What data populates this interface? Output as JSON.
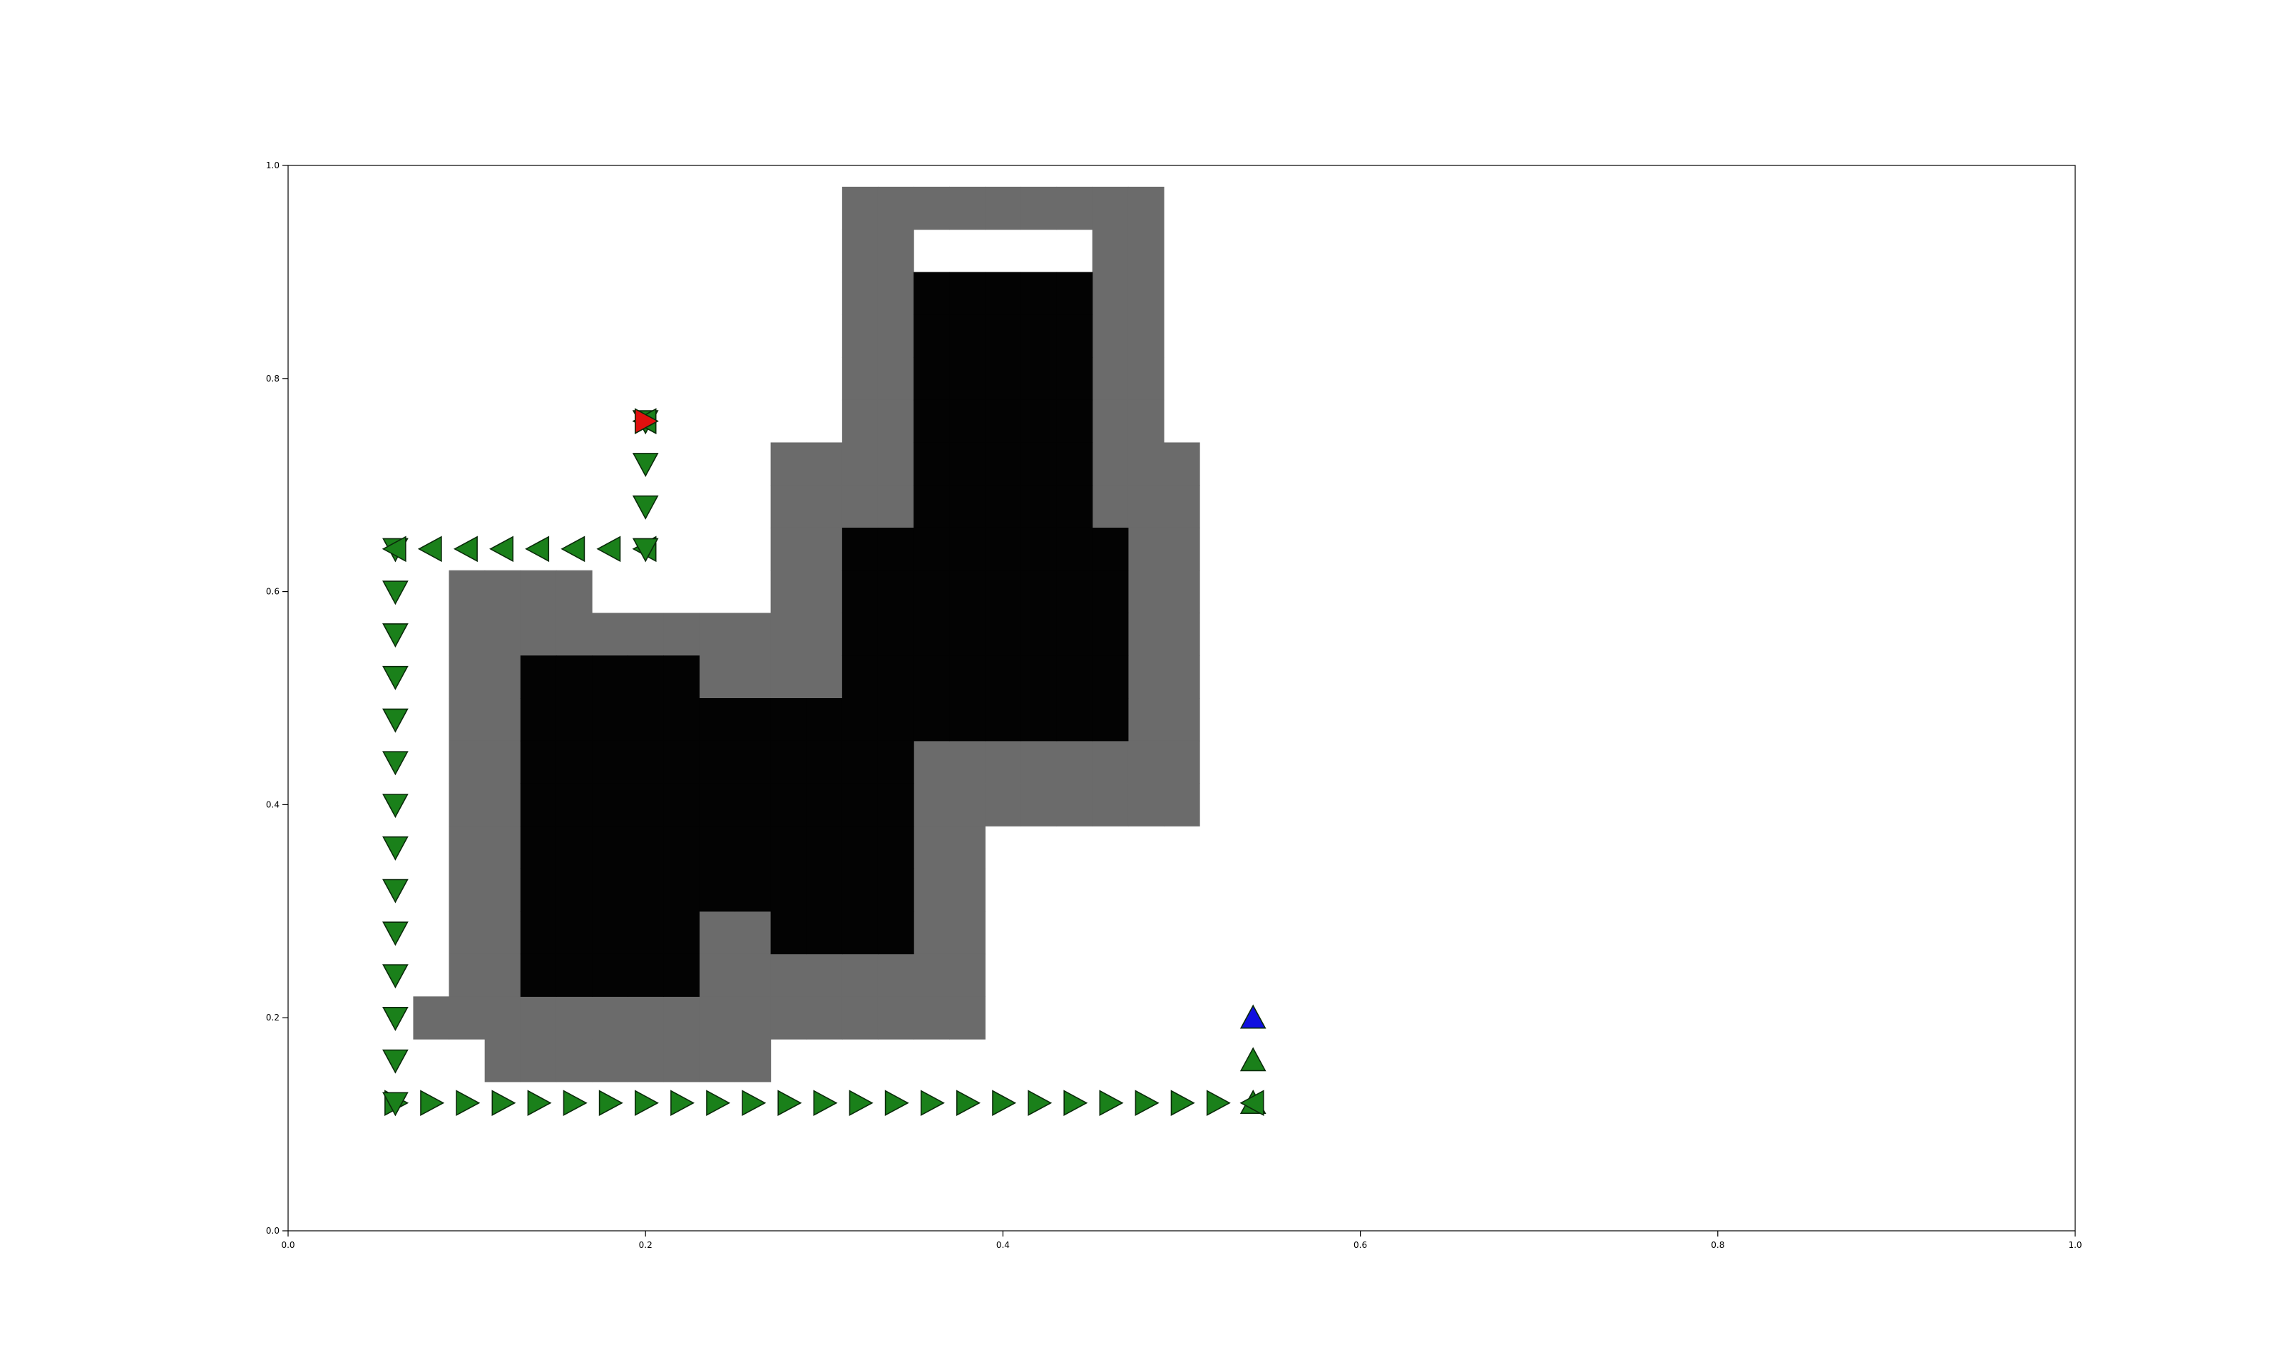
{
  "chart_data": {
    "type": "scatter",
    "title": "",
    "xlabel": "",
    "ylabel": "",
    "xlim": [
      0.0,
      1.0
    ],
    "ylim": [
      0.0,
      1.0
    ],
    "grid": false,
    "xticks": [
      "0.0",
      "0.2",
      "0.4",
      "0.6",
      "0.8",
      "1.0"
    ],
    "yticks": [
      "0.0",
      "0.2",
      "0.4",
      "0.6",
      "0.8",
      "1.0"
    ],
    "colors": {
      "inflated_obstacle": "#6b6b6b",
      "obstacle": "#030303",
      "path_marker": "#1a801a",
      "goal_marker": "#e0100e",
      "start_marker": "#1010e0",
      "marker_edge": "#0a2a0a"
    },
    "inflated_obstacle_cells": [
      [
        0.32,
        0.96
      ],
      [
        0.34,
        0.96
      ],
      [
        0.36,
        0.96
      ],
      [
        0.38,
        0.96
      ],
      [
        0.4,
        0.96
      ],
      [
        0.42,
        0.96
      ],
      [
        0.44,
        0.96
      ],
      [
        0.46,
        0.96
      ],
      [
        0.48,
        0.96
      ],
      [
        0.32,
        0.92
      ],
      [
        0.34,
        0.92
      ],
      [
        0.46,
        0.92
      ],
      [
        0.48,
        0.92
      ],
      [
        0.32,
        0.88
      ],
      [
        0.34,
        0.88
      ],
      [
        0.46,
        0.88
      ],
      [
        0.48,
        0.88
      ],
      [
        0.32,
        0.84
      ],
      [
        0.34,
        0.84
      ],
      [
        0.46,
        0.84
      ],
      [
        0.48,
        0.84
      ],
      [
        0.32,
        0.8
      ],
      [
        0.34,
        0.8
      ],
      [
        0.46,
        0.8
      ],
      [
        0.48,
        0.8
      ],
      [
        0.32,
        0.76
      ],
      [
        0.34,
        0.76
      ],
      [
        0.46,
        0.76
      ],
      [
        0.48,
        0.76
      ],
      [
        0.28,
        0.72
      ],
      [
        0.3,
        0.72
      ],
      [
        0.32,
        0.72
      ],
      [
        0.34,
        0.72
      ],
      [
        0.46,
        0.72
      ],
      [
        0.48,
        0.72
      ],
      [
        0.5,
        0.72
      ],
      [
        0.28,
        0.68
      ],
      [
        0.3,
        0.68
      ],
      [
        0.32,
        0.68
      ],
      [
        0.34,
        0.68
      ],
      [
        0.46,
        0.68
      ],
      [
        0.48,
        0.68
      ],
      [
        0.5,
        0.68
      ],
      [
        0.28,
        0.64
      ],
      [
        0.3,
        0.64
      ],
      [
        0.48,
        0.64
      ],
      [
        0.5,
        0.64
      ],
      [
        0.1,
        0.6
      ],
      [
        0.12,
        0.6
      ],
      [
        0.14,
        0.6
      ],
      [
        0.16,
        0.6
      ],
      [
        0.28,
        0.6
      ],
      [
        0.3,
        0.6
      ],
      [
        0.48,
        0.6
      ],
      [
        0.5,
        0.6
      ],
      [
        0.1,
        0.56
      ],
      [
        0.12,
        0.56
      ],
      [
        0.14,
        0.56
      ],
      [
        0.16,
        0.56
      ],
      [
        0.18,
        0.56
      ],
      [
        0.2,
        0.56
      ],
      [
        0.22,
        0.56
      ],
      [
        0.24,
        0.56
      ],
      [
        0.26,
        0.56
      ],
      [
        0.28,
        0.56
      ],
      [
        0.3,
        0.56
      ],
      [
        0.48,
        0.56
      ],
      [
        0.5,
        0.56
      ],
      [
        0.1,
        0.52
      ],
      [
        0.12,
        0.52
      ],
      [
        0.24,
        0.52
      ],
      [
        0.26,
        0.52
      ],
      [
        0.28,
        0.52
      ],
      [
        0.3,
        0.52
      ],
      [
        0.48,
        0.52
      ],
      [
        0.5,
        0.52
      ],
      [
        0.1,
        0.48
      ],
      [
        0.12,
        0.48
      ],
      [
        0.48,
        0.48
      ],
      [
        0.5,
        0.48
      ],
      [
        0.1,
        0.44
      ],
      [
        0.12,
        0.44
      ],
      [
        0.36,
        0.44
      ],
      [
        0.38,
        0.44
      ],
      [
        0.4,
        0.44
      ],
      [
        0.42,
        0.44
      ],
      [
        0.44,
        0.44
      ],
      [
        0.46,
        0.44
      ],
      [
        0.48,
        0.44
      ],
      [
        0.5,
        0.44
      ],
      [
        0.1,
        0.4
      ],
      [
        0.12,
        0.4
      ],
      [
        0.36,
        0.4
      ],
      [
        0.38,
        0.4
      ],
      [
        0.4,
        0.4
      ],
      [
        0.42,
        0.4
      ],
      [
        0.44,
        0.4
      ],
      [
        0.46,
        0.4
      ],
      [
        0.48,
        0.4
      ],
      [
        0.5,
        0.4
      ],
      [
        0.1,
        0.36
      ],
      [
        0.12,
        0.36
      ],
      [
        0.36,
        0.36
      ],
      [
        0.38,
        0.36
      ],
      [
        0.1,
        0.32
      ],
      [
        0.12,
        0.32
      ],
      [
        0.36,
        0.32
      ],
      [
        0.38,
        0.32
      ],
      [
        0.1,
        0.28
      ],
      [
        0.12,
        0.28
      ],
      [
        0.24,
        0.28
      ],
      [
        0.26,
        0.28
      ],
      [
        0.36,
        0.28
      ],
      [
        0.38,
        0.28
      ],
      [
        0.1,
        0.24
      ],
      [
        0.12,
        0.24
      ],
      [
        0.24,
        0.24
      ],
      [
        0.26,
        0.24
      ],
      [
        0.28,
        0.24
      ],
      [
        0.3,
        0.24
      ],
      [
        0.32,
        0.24
      ],
      [
        0.34,
        0.24
      ],
      [
        0.36,
        0.24
      ],
      [
        0.38,
        0.24
      ],
      [
        0.08,
        0.2
      ],
      [
        0.1,
        0.2
      ],
      [
        0.12,
        0.2
      ],
      [
        0.14,
        0.2
      ],
      [
        0.16,
        0.2
      ],
      [
        0.18,
        0.2
      ],
      [
        0.2,
        0.2
      ],
      [
        0.22,
        0.2
      ],
      [
        0.24,
        0.2
      ],
      [
        0.26,
        0.2
      ],
      [
        0.28,
        0.2
      ],
      [
        0.3,
        0.2
      ],
      [
        0.32,
        0.2
      ],
      [
        0.34,
        0.2
      ],
      [
        0.36,
        0.2
      ],
      [
        0.38,
        0.2
      ],
      [
        0.12,
        0.16
      ],
      [
        0.14,
        0.16
      ],
      [
        0.16,
        0.16
      ],
      [
        0.18,
        0.16
      ],
      [
        0.2,
        0.16
      ],
      [
        0.22,
        0.16
      ],
      [
        0.24,
        0.16
      ],
      [
        0.26,
        0.16
      ]
    ],
    "obstacle_cells": [
      [
        0.36,
        0.88
      ],
      [
        0.38,
        0.88
      ],
      [
        0.4,
        0.88
      ],
      [
        0.42,
        0.88
      ],
      [
        0.44,
        0.88
      ],
      [
        0.36,
        0.84
      ],
      [
        0.38,
        0.84
      ],
      [
        0.4,
        0.84
      ],
      [
        0.42,
        0.84
      ],
      [
        0.44,
        0.84
      ],
      [
        0.36,
        0.8
      ],
      [
        0.38,
        0.8
      ],
      [
        0.4,
        0.8
      ],
      [
        0.42,
        0.8
      ],
      [
        0.44,
        0.8
      ],
      [
        0.36,
        0.76
      ],
      [
        0.38,
        0.76
      ],
      [
        0.4,
        0.76
      ],
      [
        0.42,
        0.76
      ],
      [
        0.44,
        0.76
      ],
      [
        0.36,
        0.72
      ],
      [
        0.38,
        0.72
      ],
      [
        0.4,
        0.72
      ],
      [
        0.42,
        0.72
      ],
      [
        0.44,
        0.72
      ],
      [
        0.36,
        0.68
      ],
      [
        0.38,
        0.68
      ],
      [
        0.4,
        0.68
      ],
      [
        0.42,
        0.68
      ],
      [
        0.44,
        0.68
      ],
      [
        0.32,
        0.64
      ],
      [
        0.34,
        0.64
      ],
      [
        0.36,
        0.64
      ],
      [
        0.38,
        0.64
      ],
      [
        0.4,
        0.64
      ],
      [
        0.42,
        0.64
      ],
      [
        0.44,
        0.64
      ],
      [
        0.46,
        0.64
      ],
      [
        0.32,
        0.6
      ],
      [
        0.34,
        0.6
      ],
      [
        0.36,
        0.6
      ],
      [
        0.38,
        0.6
      ],
      [
        0.4,
        0.6
      ],
      [
        0.42,
        0.6
      ],
      [
        0.44,
        0.6
      ],
      [
        0.46,
        0.6
      ],
      [
        0.32,
        0.56
      ],
      [
        0.34,
        0.56
      ],
      [
        0.36,
        0.56
      ],
      [
        0.38,
        0.56
      ],
      [
        0.4,
        0.56
      ],
      [
        0.42,
        0.56
      ],
      [
        0.44,
        0.56
      ],
      [
        0.46,
        0.56
      ],
      [
        0.14,
        0.52
      ],
      [
        0.16,
        0.52
      ],
      [
        0.18,
        0.52
      ],
      [
        0.2,
        0.52
      ],
      [
        0.22,
        0.52
      ],
      [
        0.32,
        0.52
      ],
      [
        0.34,
        0.52
      ],
      [
        0.36,
        0.52
      ],
      [
        0.38,
        0.52
      ],
      [
        0.4,
        0.52
      ],
      [
        0.42,
        0.52
      ],
      [
        0.44,
        0.52
      ],
      [
        0.46,
        0.52
      ],
      [
        0.14,
        0.48
      ],
      [
        0.16,
        0.48
      ],
      [
        0.18,
        0.48
      ],
      [
        0.2,
        0.48
      ],
      [
        0.22,
        0.48
      ],
      [
        0.24,
        0.48
      ],
      [
        0.26,
        0.48
      ],
      [
        0.28,
        0.48
      ],
      [
        0.3,
        0.48
      ],
      [
        0.32,
        0.48
      ],
      [
        0.34,
        0.48
      ],
      [
        0.36,
        0.48
      ],
      [
        0.38,
        0.48
      ],
      [
        0.4,
        0.48
      ],
      [
        0.42,
        0.48
      ],
      [
        0.44,
        0.48
      ],
      [
        0.46,
        0.48
      ],
      [
        0.14,
        0.44
      ],
      [
        0.16,
        0.44
      ],
      [
        0.18,
        0.44
      ],
      [
        0.2,
        0.44
      ],
      [
        0.22,
        0.44
      ],
      [
        0.24,
        0.44
      ],
      [
        0.26,
        0.44
      ],
      [
        0.28,
        0.44
      ],
      [
        0.3,
        0.44
      ],
      [
        0.32,
        0.44
      ],
      [
        0.34,
        0.44
      ],
      [
        0.14,
        0.4
      ],
      [
        0.16,
        0.4
      ],
      [
        0.18,
        0.4
      ],
      [
        0.2,
        0.4
      ],
      [
        0.22,
        0.4
      ],
      [
        0.24,
        0.4
      ],
      [
        0.26,
        0.4
      ],
      [
        0.28,
        0.4
      ],
      [
        0.3,
        0.4
      ],
      [
        0.32,
        0.4
      ],
      [
        0.34,
        0.4
      ],
      [
        0.14,
        0.36
      ],
      [
        0.16,
        0.36
      ],
      [
        0.18,
        0.36
      ],
      [
        0.2,
        0.36
      ],
      [
        0.22,
        0.36
      ],
      [
        0.24,
        0.36
      ],
      [
        0.26,
        0.36
      ],
      [
        0.28,
        0.36
      ],
      [
        0.3,
        0.36
      ],
      [
        0.32,
        0.36
      ],
      [
        0.34,
        0.36
      ],
      [
        0.14,
        0.32
      ],
      [
        0.16,
        0.32
      ],
      [
        0.18,
        0.32
      ],
      [
        0.2,
        0.32
      ],
      [
        0.22,
        0.32
      ],
      [
        0.24,
        0.32
      ],
      [
        0.26,
        0.32
      ],
      [
        0.28,
        0.32
      ],
      [
        0.3,
        0.32
      ],
      [
        0.32,
        0.32
      ],
      [
        0.34,
        0.32
      ],
      [
        0.14,
        0.28
      ],
      [
        0.16,
        0.28
      ],
      [
        0.18,
        0.28
      ],
      [
        0.2,
        0.28
      ],
      [
        0.22,
        0.28
      ],
      [
        0.28,
        0.28
      ],
      [
        0.3,
        0.28
      ],
      [
        0.32,
        0.28
      ],
      [
        0.34,
        0.28
      ],
      [
        0.14,
        0.24
      ],
      [
        0.16,
        0.24
      ],
      [
        0.18,
        0.24
      ],
      [
        0.2,
        0.24
      ],
      [
        0.22,
        0.24
      ]
    ],
    "path_markers": [
      {
        "x": 0.54,
        "y": 0.2,
        "marker": "up",
        "role": "start"
      },
      {
        "x": 0.54,
        "y": 0.16,
        "marker": "up"
      },
      {
        "x": 0.54,
        "y": 0.12,
        "marker": "up"
      },
      {
        "x": 0.54,
        "y": 0.12,
        "marker": "left"
      },
      {
        "x": 0.52,
        "y": 0.12,
        "marker": "right"
      },
      {
        "x": 0.5,
        "y": 0.12,
        "marker": "right"
      },
      {
        "x": 0.48,
        "y": 0.12,
        "marker": "right"
      },
      {
        "x": 0.46,
        "y": 0.12,
        "marker": "right"
      },
      {
        "x": 0.44,
        "y": 0.12,
        "marker": "right"
      },
      {
        "x": 0.42,
        "y": 0.12,
        "marker": "right"
      },
      {
        "x": 0.4,
        "y": 0.12,
        "marker": "right"
      },
      {
        "x": 0.38,
        "y": 0.12,
        "marker": "right"
      },
      {
        "x": 0.36,
        "y": 0.12,
        "marker": "right"
      },
      {
        "x": 0.34,
        "y": 0.12,
        "marker": "right"
      },
      {
        "x": 0.32,
        "y": 0.12,
        "marker": "right"
      },
      {
        "x": 0.3,
        "y": 0.12,
        "marker": "right"
      },
      {
        "x": 0.28,
        "y": 0.12,
        "marker": "right"
      },
      {
        "x": 0.26,
        "y": 0.12,
        "marker": "right"
      },
      {
        "x": 0.24,
        "y": 0.12,
        "marker": "right"
      },
      {
        "x": 0.22,
        "y": 0.12,
        "marker": "right"
      },
      {
        "x": 0.2,
        "y": 0.12,
        "marker": "right"
      },
      {
        "x": 0.18,
        "y": 0.12,
        "marker": "right"
      },
      {
        "x": 0.16,
        "y": 0.12,
        "marker": "right"
      },
      {
        "x": 0.14,
        "y": 0.12,
        "marker": "right"
      },
      {
        "x": 0.12,
        "y": 0.12,
        "marker": "right"
      },
      {
        "x": 0.1,
        "y": 0.12,
        "marker": "right"
      },
      {
        "x": 0.08,
        "y": 0.12,
        "marker": "right"
      },
      {
        "x": 0.06,
        "y": 0.12,
        "marker": "right"
      },
      {
        "x": 0.06,
        "y": 0.12,
        "marker": "down"
      },
      {
        "x": 0.06,
        "y": 0.16,
        "marker": "down"
      },
      {
        "x": 0.06,
        "y": 0.2,
        "marker": "down"
      },
      {
        "x": 0.06,
        "y": 0.24,
        "marker": "down"
      },
      {
        "x": 0.06,
        "y": 0.28,
        "marker": "down"
      },
      {
        "x": 0.06,
        "y": 0.32,
        "marker": "down"
      },
      {
        "x": 0.06,
        "y": 0.36,
        "marker": "down"
      },
      {
        "x": 0.06,
        "y": 0.4,
        "marker": "down"
      },
      {
        "x": 0.06,
        "y": 0.44,
        "marker": "down"
      },
      {
        "x": 0.06,
        "y": 0.48,
        "marker": "down"
      },
      {
        "x": 0.06,
        "y": 0.52,
        "marker": "down"
      },
      {
        "x": 0.06,
        "y": 0.56,
        "marker": "down"
      },
      {
        "x": 0.06,
        "y": 0.6,
        "marker": "down"
      },
      {
        "x": 0.06,
        "y": 0.64,
        "marker": "down"
      },
      {
        "x": 0.06,
        "y": 0.64,
        "marker": "left"
      },
      {
        "x": 0.08,
        "y": 0.64,
        "marker": "left"
      },
      {
        "x": 0.1,
        "y": 0.64,
        "marker": "left"
      },
      {
        "x": 0.12,
        "y": 0.64,
        "marker": "left"
      },
      {
        "x": 0.14,
        "y": 0.64,
        "marker": "left"
      },
      {
        "x": 0.16,
        "y": 0.64,
        "marker": "left"
      },
      {
        "x": 0.18,
        "y": 0.64,
        "marker": "left"
      },
      {
        "x": 0.2,
        "y": 0.64,
        "marker": "left"
      },
      {
        "x": 0.2,
        "y": 0.64,
        "marker": "down"
      },
      {
        "x": 0.2,
        "y": 0.68,
        "marker": "down"
      },
      {
        "x": 0.2,
        "y": 0.72,
        "marker": "down"
      },
      {
        "x": 0.2,
        "y": 0.76,
        "marker": "down"
      },
      {
        "x": 0.2,
        "y": 0.76,
        "marker": "left"
      },
      {
        "x": 0.2,
        "y": 0.76,
        "marker": "right",
        "role": "goal"
      }
    ]
  }
}
